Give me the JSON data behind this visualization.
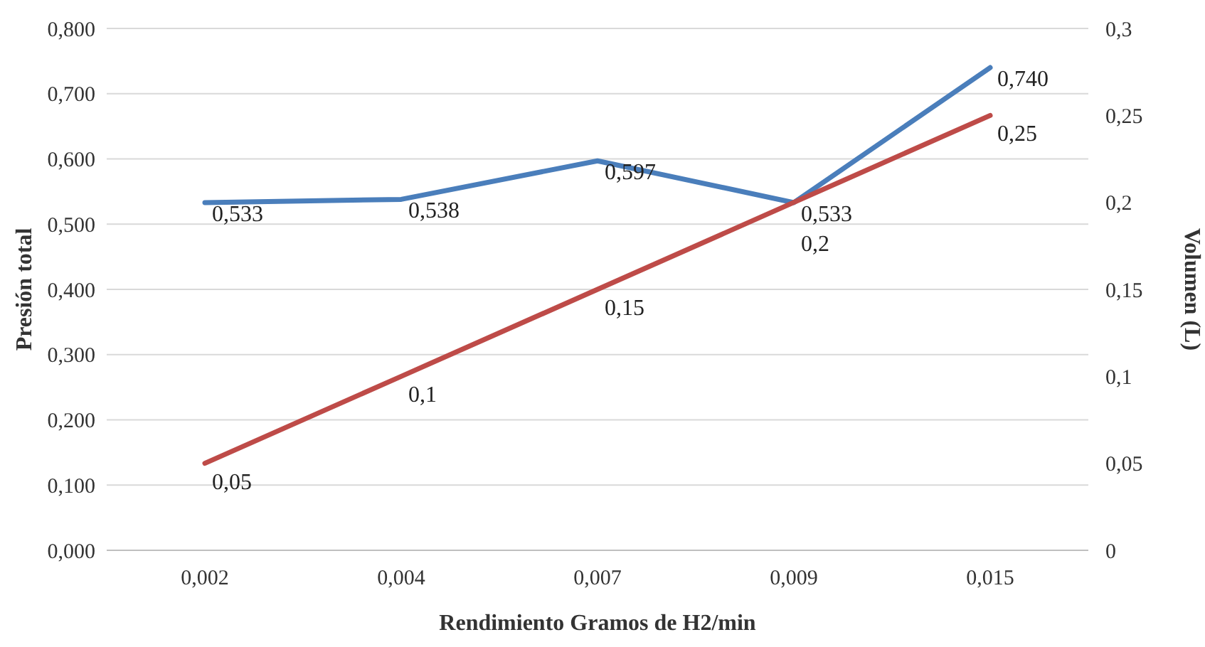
{
  "chart_data": {
    "type": "line",
    "xlabel": "Rendimiento Gramos de H2/min",
    "ylabel": "Presión total",
    "y2label": "Volumen (L)",
    "categories": [
      "0,002",
      "0,004",
      "0,007",
      "0,009",
      "0,015"
    ],
    "series": [
      {
        "color": "#4a7ebb",
        "values": [
          0.533,
          0.538,
          0.597,
          0.533,
          0.74
        ],
        "value_labels": [
          "0,533",
          "0,538",
          "0,597",
          "0,533",
          "0,740"
        ]
      },
      {
        "color": "#be4b48",
        "axis": "y2",
        "values": [
          0.05,
          0.1,
          0.15,
          0.2,
          0.25
        ],
        "value_labels": [
          "0,05",
          "0,1",
          "0,15",
          "0,2",
          "0,25"
        ]
      }
    ],
    "ylim": [
      0,
      0.8
    ],
    "yticks": [
      {
        "value": 0,
        "label": "0,000"
      },
      {
        "value": 0.1,
        "label": "0,100"
      },
      {
        "value": 0.2,
        "label": "0,200"
      },
      {
        "value": 0.3,
        "label": "0,300"
      },
      {
        "value": 0.4,
        "label": "0,400"
      },
      {
        "value": 0.5,
        "label": "0,500"
      },
      {
        "value": 0.6,
        "label": "0,600"
      },
      {
        "value": 0.7,
        "label": "0,700"
      },
      {
        "value": 0.8,
        "label": "0,800"
      }
    ],
    "y2lim": [
      0,
      0.3
    ],
    "y2ticks": [
      0,
      {
        "value": 0.05,
        "label": "0,05"
      },
      {
        "value": 0.1,
        "label": "0,1"
      },
      {
        "value": 0.15,
        "label": "0,15"
      },
      {
        "value": 0.2,
        "label": "0,2"
      },
      {
        "value": 0.25,
        "label": "0,25"
      },
      {
        "value": 0.3,
        "label": "0,3"
      }
    ],
    "grid": "y",
    "marker": "none",
    "line_style": "solid"
  }
}
